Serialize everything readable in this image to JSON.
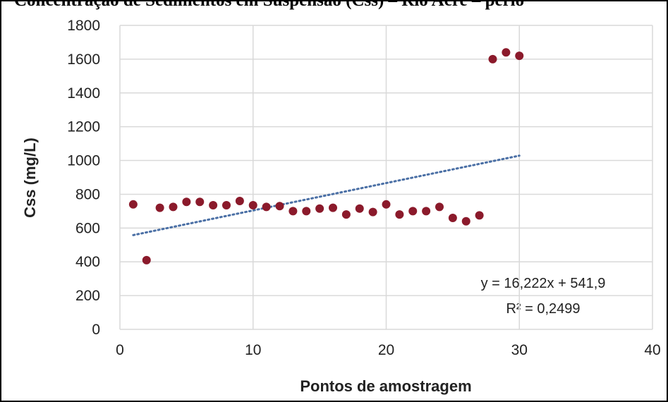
{
  "chart_data": {
    "type": "scatter",
    "title": "Concentração de Sedimentos em Suspensão (Css) – Rio Acre – perío",
    "x_label": "Pontos de amostragem",
    "y_label": "Css (mg/L)",
    "color": "#8b1a2b",
    "grid": true,
    "xlim": [
      0,
      40
    ],
    "xticks": [
      0,
      10,
      20,
      30,
      40
    ],
    "ylim": [
      0,
      1800
    ],
    "yticks": [
      0,
      200,
      400,
      600,
      800,
      1000,
      1200,
      1400,
      1600,
      1800
    ],
    "x": [
      1,
      2,
      3,
      4,
      5,
      6,
      7,
      8,
      9,
      10,
      11,
      12,
      13,
      14,
      15,
      16,
      17,
      18,
      19,
      20,
      21,
      22,
      23,
      24,
      25,
      26,
      27,
      28,
      29,
      30
    ],
    "values": [
      740,
      410,
      720,
      725,
      755,
      755,
      735,
      735,
      760,
      735,
      725,
      730,
      700,
      700,
      715,
      720,
      680,
      715,
      695,
      740,
      680,
      700,
      700,
      725,
      660,
      640,
      675,
      1600,
      1640,
      1620
    ],
    "trendline": {
      "slope": 16.222,
      "intercept": 541.9,
      "x": [
        1,
        30
      ],
      "color": "#4a6fa5",
      "equation_label": "y = 16,222x + 541,9",
      "r2_label": "R² = 0,2499"
    }
  }
}
